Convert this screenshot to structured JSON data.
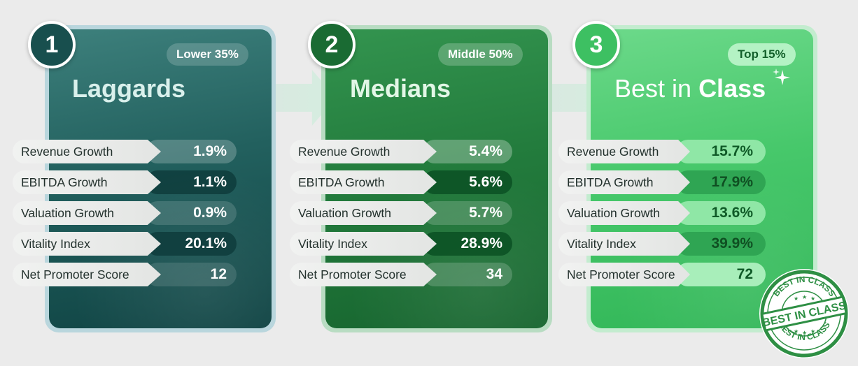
{
  "cards": [
    {
      "number": "1",
      "tier": "Lower 35%",
      "title": "Laggards",
      "metrics": [
        {
          "label": "Revenue Growth",
          "value": "1.9%"
        },
        {
          "label": "EBITDA Growth",
          "value": "1.1%"
        },
        {
          "label": "Valuation Growth",
          "value": "0.9%"
        },
        {
          "label": "Vitality Index",
          "value": "20.1%"
        },
        {
          "label": "Net Promoter Score",
          "value": "12"
        }
      ]
    },
    {
      "number": "2",
      "tier": "Middle 50%",
      "title": "Medians",
      "metrics": [
        {
          "label": "Revenue Growth",
          "value": "5.4%"
        },
        {
          "label": "EBITDA Growth",
          "value": "5.6%"
        },
        {
          "label": "Valuation Growth",
          "value": "5.7%"
        },
        {
          "label": "Vitality Index",
          "value": "28.9%"
        },
        {
          "label": "Net Promoter Score",
          "value": "34"
        }
      ]
    },
    {
      "number": "3",
      "tier": "Top 15%",
      "title_prefix": "Best in ",
      "title_bold": "Class",
      "metrics": [
        {
          "label": "Revenue Growth",
          "value": "15.7%"
        },
        {
          "label": "EBITDA Growth",
          "value": "17.9%"
        },
        {
          "label": "Valuation Growth",
          "value": "13.6%"
        },
        {
          "label": "Vitality Index",
          "value": "39.9%"
        },
        {
          "label": "Net Promoter Score",
          "value": "72"
        }
      ]
    }
  ],
  "stamp": {
    "text": "BEST IN CLASS"
  },
  "colors": {
    "laggards": "#22605e",
    "medians": "#237c3d",
    "best_in_class": "#47c86b",
    "background": "#ebebeb"
  }
}
